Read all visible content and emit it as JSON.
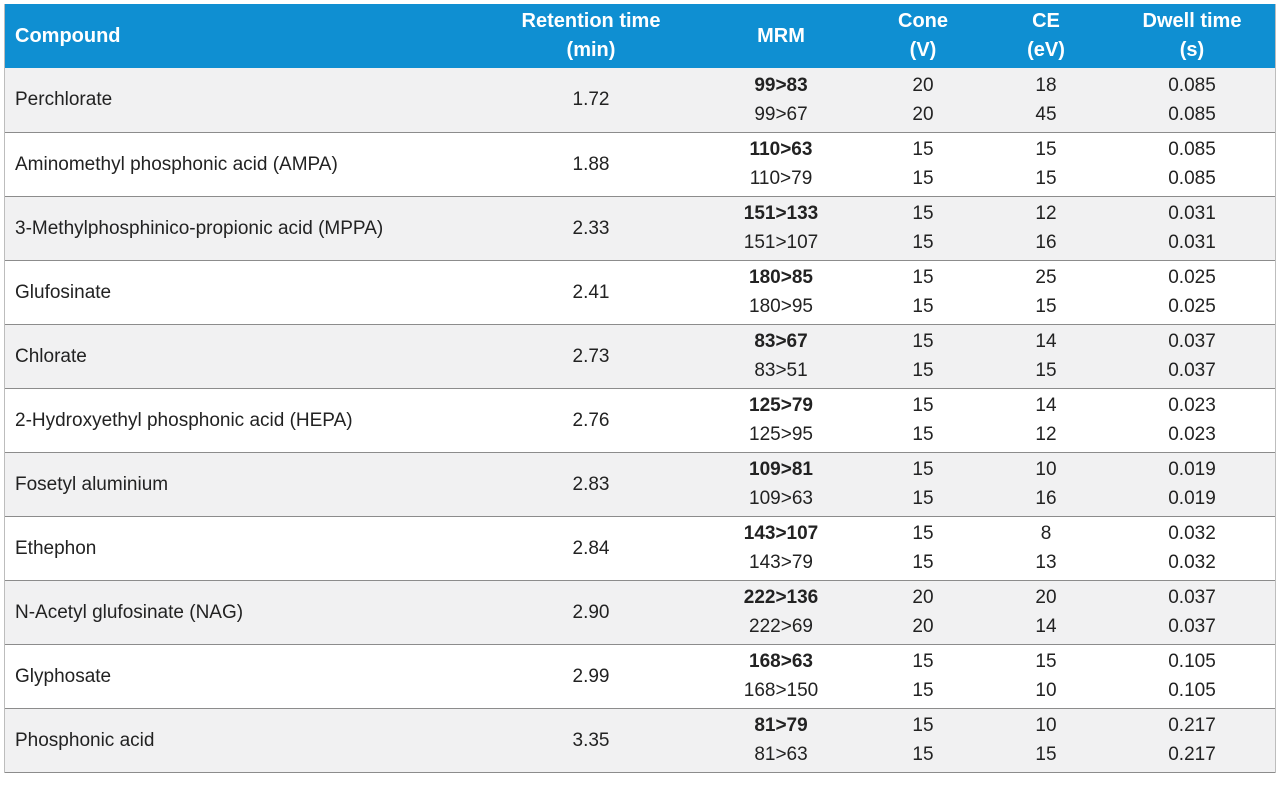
{
  "table": {
    "headers": {
      "compound": "Compound",
      "retention_time": [
        "Retention time",
        "(min)"
      ],
      "mrm": "MRM",
      "cone": [
        "Cone",
        "(V)"
      ],
      "ce": [
        "CE",
        "(eV)"
      ],
      "dwell": [
        "Dwell time",
        "(s)"
      ]
    },
    "rows": [
      {
        "compound": "Perchlorate",
        "rt": "1.72",
        "mrm": [
          "99>83",
          "99>67"
        ],
        "cone": [
          "20",
          "20"
        ],
        "ce": [
          "18",
          "45"
        ],
        "dwell": [
          "0.085",
          "0.085"
        ]
      },
      {
        "compound": "Aminomethyl phosphonic acid (AMPA)",
        "rt": "1.88",
        "mrm": [
          "110>63",
          "110>79"
        ],
        "cone": [
          "15",
          "15"
        ],
        "ce": [
          "15",
          "15"
        ],
        "dwell": [
          "0.085",
          "0.085"
        ]
      },
      {
        "compound": "3-Methylphosphinico-propionic acid (MPPA)",
        "rt": "2.33",
        "mrm": [
          "151>133",
          "151>107"
        ],
        "cone": [
          "15",
          "15"
        ],
        "ce": [
          "12",
          "16"
        ],
        "dwell": [
          "0.031",
          "0.031"
        ]
      },
      {
        "compound": "Glufosinate",
        "rt": "2.41",
        "mrm": [
          "180>85",
          "180>95"
        ],
        "cone": [
          "15",
          "15"
        ],
        "ce": [
          "25",
          "15"
        ],
        "dwell": [
          "0.025",
          "0.025"
        ]
      },
      {
        "compound": "Chlorate",
        "rt": "2.73",
        "mrm": [
          "83>67",
          "83>51"
        ],
        "cone": [
          "15",
          "15"
        ],
        "ce": [
          "14",
          "15"
        ],
        "dwell": [
          "0.037",
          "0.037"
        ]
      },
      {
        "compound": "2-Hydroxyethyl phosphonic acid (HEPA)",
        "rt": "2.76",
        "mrm": [
          "125>79",
          "125>95"
        ],
        "cone": [
          "15",
          "15"
        ],
        "ce": [
          "14",
          "12"
        ],
        "dwell": [
          "0.023",
          "0.023"
        ]
      },
      {
        "compound": "Fosetyl aluminium",
        "rt": "2.83",
        "mrm": [
          "109>81",
          "109>63"
        ],
        "cone": [
          "15",
          "15"
        ],
        "ce": [
          "10",
          "16"
        ],
        "dwell": [
          "0.019",
          "0.019"
        ]
      },
      {
        "compound": "Ethephon",
        "rt": "2.84",
        "mrm": [
          "143>107",
          "143>79"
        ],
        "cone": [
          "15",
          "15"
        ],
        "ce": [
          "8",
          "13"
        ],
        "dwell": [
          "0.032",
          "0.032"
        ]
      },
      {
        "compound": "N-Acetyl glufosinate (NAG)",
        "rt": "2.90",
        "mrm": [
          "222>136",
          "222>69"
        ],
        "cone": [
          "20",
          "20"
        ],
        "ce": [
          "20",
          "14"
        ],
        "dwell": [
          "0.037",
          "0.037"
        ]
      },
      {
        "compound": "Glyphosate",
        "rt": "2.99",
        "mrm": [
          "168>63",
          "168>150"
        ],
        "cone": [
          "15",
          "15"
        ],
        "ce": [
          "15",
          "10"
        ],
        "dwell": [
          "0.105",
          "0.105"
        ]
      },
      {
        "compound": "Phosphonic acid",
        "rt": "3.35",
        "mrm": [
          "81>79",
          "81>63"
        ],
        "cone": [
          "15",
          "15"
        ],
        "ce": [
          "10",
          "15"
        ],
        "dwell": [
          "0.217",
          "0.217"
        ]
      }
    ]
  },
  "colors": {
    "header_bg": "#0f8fd2",
    "header_text": "#ffffff",
    "row_alt_bg": "#f1f1f2",
    "row_border": "#8c8c8c"
  }
}
